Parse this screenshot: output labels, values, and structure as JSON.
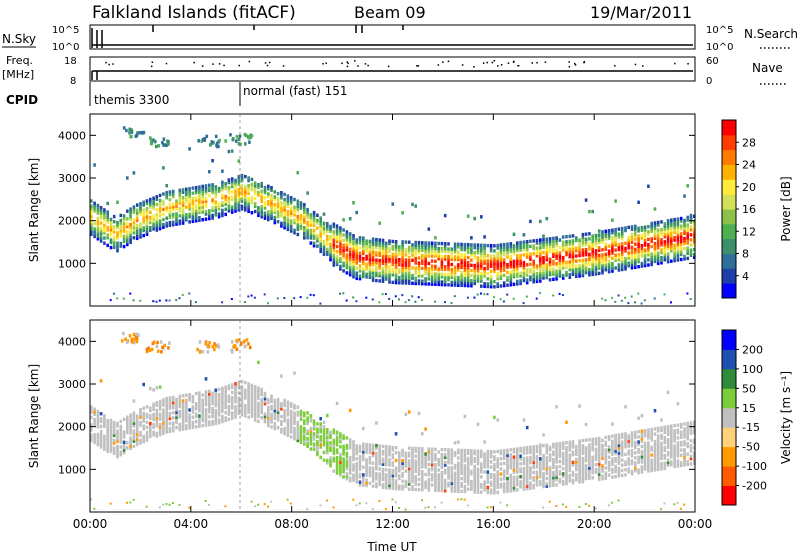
{
  "header": {
    "station": "Falkland Islands (fitACF)",
    "beam": "Beam 09",
    "date": "19/Mar/2011"
  },
  "summary_panels": {
    "nsky_label": "N.Sky",
    "nsky_ticks": [
      "10^5",
      "10^0"
    ],
    "nsearch_label": "N.Search",
    "freq_label_line1": "Freq.",
    "freq_label_line2": "[MHz]",
    "freq_ticks": [
      "18",
      "8"
    ],
    "nave_label": "Nave",
    "nave_ticks": [
      "60",
      "0"
    ],
    "cpid_label": "CPID",
    "cpid_segments": [
      "themis 3300",
      "normal (fast) 151"
    ]
  },
  "chart_data": [
    {
      "type": "heatmap",
      "name": "power",
      "ylabel": "Slant Range [km]",
      "xlabel": "",
      "x_ticks": [
        "00:00",
        "04:00",
        "08:00",
        "12:00",
        "16:00",
        "20:00",
        "00:00"
      ],
      "y_ticks": [
        1000,
        2000,
        3000,
        4000
      ],
      "ylim": [
        0,
        4500
      ],
      "xlim_hours": [
        0,
        24
      ],
      "colorbar": {
        "label": "Power [dB]",
        "ticks": [
          "28",
          "24",
          "20",
          "16",
          "12",
          "8",
          "4"
        ],
        "colors": [
          "#0000ff",
          "#1e3fa8",
          "#2f6f9a",
          "#3b8f6a",
          "#4caf50",
          "#8bc34a",
          "#d4e157",
          "#ffeb3b",
          "#ffb300",
          "#ff7a00",
          "#ff3d00",
          "#ff0000"
        ]
      },
      "echo_band_center_km": [
        [
          0.0,
          2100
        ],
        [
          1.0,
          1700
        ],
        [
          1.8,
          2000
        ],
        [
          3.0,
          2300
        ],
        [
          5.0,
          2500
        ],
        [
          6.0,
          2700
        ],
        [
          7.2,
          2400
        ],
        [
          8.5,
          2000
        ],
        [
          9.5,
          1500
        ],
        [
          10.5,
          1150
        ],
        [
          12.0,
          1050
        ],
        [
          14.0,
          1000
        ],
        [
          16.0,
          950
        ],
        [
          18.0,
          1100
        ],
        [
          20.0,
          1250
        ],
        [
          22.0,
          1450
        ],
        [
          24.0,
          1650
        ]
      ]
    },
    {
      "type": "heatmap",
      "name": "velocity",
      "ylabel": "Slant Range [km]",
      "xlabel": "Time UT",
      "x_ticks": [
        "00:00",
        "04:00",
        "08:00",
        "12:00",
        "16:00",
        "20:00",
        "00:00"
      ],
      "y_ticks": [
        1000,
        2000,
        3000,
        4000
      ],
      "ylim": [
        0,
        4500
      ],
      "xlim_hours": [
        0,
        24
      ],
      "colorbar": {
        "label": "Velocity [m s⁻¹]",
        "ticks": [
          "200",
          "100",
          "50",
          "15",
          "-15",
          "-50",
          "-100",
          "-200"
        ],
        "colors": [
          "#ff0000",
          "#ff5a00",
          "#ff9a00",
          "#ffd27a",
          "#c0c0c0",
          "#7ccd3a",
          "#2e8b3a",
          "#1f4fb0",
          "#0000ff"
        ]
      },
      "ground_scatter_color": "#c0c0c0"
    }
  ],
  "colors": {
    "ground_scatter": "#c0c0c0",
    "axis": "#000000"
  }
}
